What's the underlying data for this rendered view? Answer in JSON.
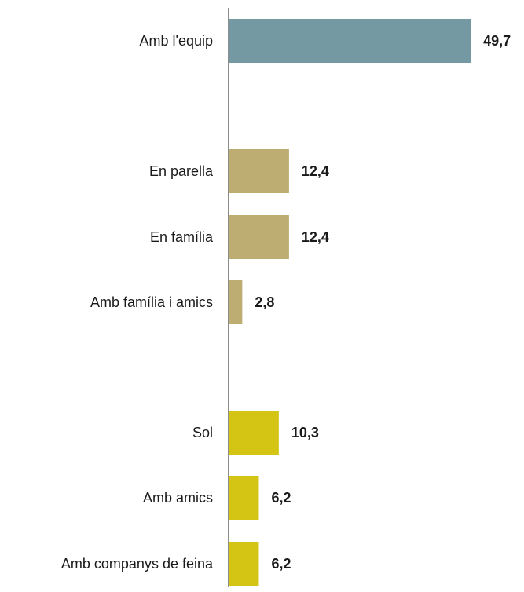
{
  "chart_data": {
    "type": "bar",
    "orientation": "horizontal",
    "categories": [
      "Amb l'equip",
      "En parella",
      "En família",
      "Amb família i amics",
      "Sol",
      "Amb amics",
      "Amb companys de feina"
    ],
    "values": [
      49.7,
      12.4,
      12.4,
      2.8,
      10.3,
      6.2,
      6.2
    ],
    "value_labels": [
      "49,7",
      "12,4",
      "12,4",
      "2,8",
      "10,3",
      "6,2",
      "6,2"
    ],
    "groups": [
      0,
      1,
      1,
      1,
      2,
      2,
      2
    ],
    "group_colors": [
      "#7599a3",
      "#bdad72",
      "#d4c414"
    ],
    "xlim": [
      0,
      50
    ],
    "grid": false,
    "legend": "none",
    "title": "",
    "xlabel": "",
    "ylabel": ""
  }
}
